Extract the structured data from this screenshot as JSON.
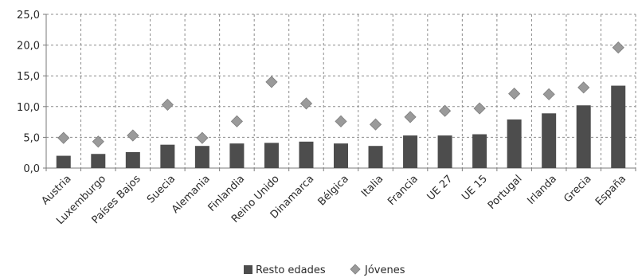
{
  "chart_data": {
    "type": "bar",
    "categories": [
      "Austria",
      "Luxemburgo",
      "Países Bajos",
      "Suecia",
      "Alemania",
      "Finlandia",
      "Reino Unido",
      "Dinamarca",
      "Bélgica",
      "Italia",
      "Francia",
      "UE 27",
      "UE 15",
      "Portugal",
      "Irlanda",
      "Grecia",
      "España"
    ],
    "series": [
      {
        "name": "Resto edades",
        "mark": "bar",
        "color": "#4d4d4d",
        "values": [
          2.0,
          2.3,
          2.6,
          3.8,
          3.6,
          4.0,
          4.1,
          4.3,
          4.0,
          3.6,
          5.3,
          5.3,
          5.5,
          7.9,
          8.9,
          10.2,
          13.4
        ]
      },
      {
        "name": "Jóvenes",
        "mark": "diamond",
        "color": "#9a9a9a",
        "values": [
          4.9,
          4.3,
          5.3,
          10.3,
          4.9,
          7.6,
          14.0,
          10.5,
          7.6,
          7.1,
          8.3,
          9.3,
          9.7,
          12.1,
          12.0,
          13.1,
          19.6
        ]
      }
    ],
    "y_ticks": [
      "0,0",
      "5,0",
      "10,0",
      "15,0",
      "20,0",
      "25,0"
    ],
    "ylim": [
      0,
      25
    ],
    "grid": true,
    "legend_position": "bottom"
  }
}
